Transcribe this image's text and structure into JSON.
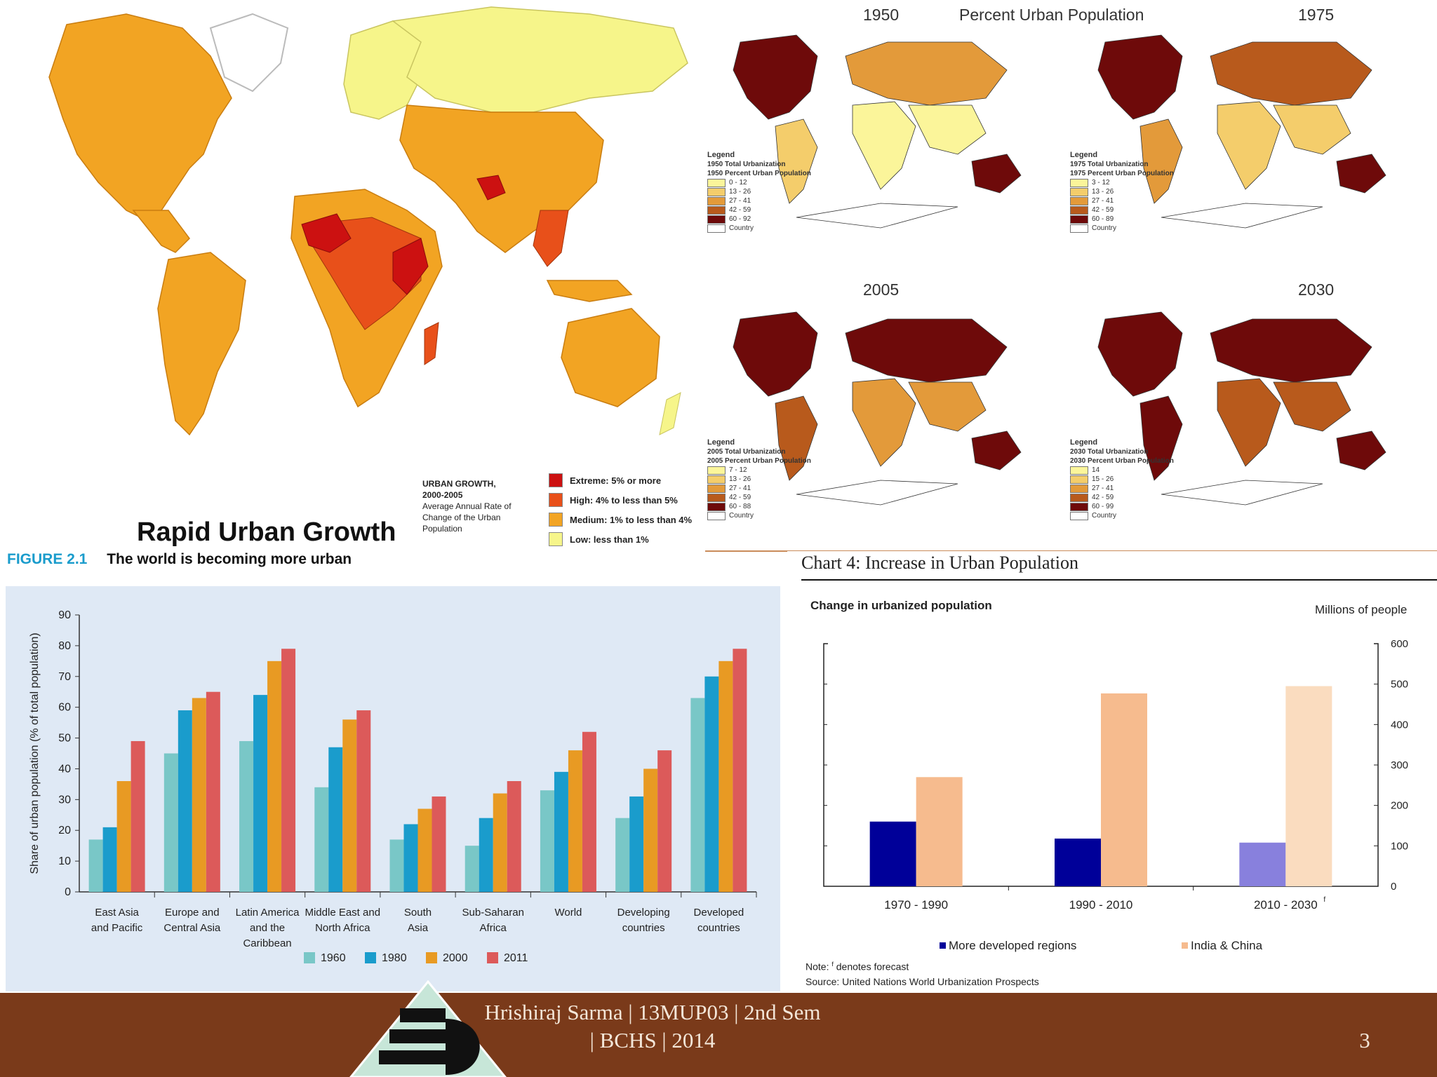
{
  "top_left_map": {
    "title": "Rapid Urban Growth",
    "legend_heading": [
      "URBAN GROWTH,",
      "2000-2005"
    ],
    "legend_subheading": [
      "Average Annual Rate of",
      "Change of the Urban",
      "Population"
    ],
    "legend_items": [
      {
        "label": "Extreme: 5% or more",
        "color": "#cc1111"
      },
      {
        "label": "High: 4% to less than 5%",
        "color": "#e8501a"
      },
      {
        "label": "Medium: 1% to less than 4%",
        "color": "#f2a423"
      },
      {
        "label": "Low: less than 1%",
        "color": "#f6f58a"
      }
    ]
  },
  "top_right_maps": {
    "title": "Percent Urban Population",
    "maps": [
      {
        "year": "1950",
        "legend_title": "Legend",
        "legend_lines": [
          "1950 Total Urbanization",
          "1950 Percent Urban Population"
        ],
        "ranges": [
          "0 - 12",
          "13 - 26",
          "27 - 41",
          "42 - 59",
          "60 - 92"
        ],
        "country_label": "Country"
      },
      {
        "year": "1975",
        "legend_title": "Legend",
        "legend_lines": [
          "1975 Total Urbanization",
          "1975 Percent Urban Population"
        ],
        "ranges": [
          "3 - 12",
          "13 - 26",
          "27 - 41",
          "42 - 59",
          "60 - 89"
        ],
        "country_label": "Country"
      },
      {
        "year": "2005",
        "legend_title": "Legend",
        "legend_lines": [
          "2005 Total Urbanization",
          "2005 Percent Urban Population"
        ],
        "ranges": [
          "7 - 12",
          "13 - 26",
          "27 - 41",
          "42 - 59",
          "60 - 88"
        ],
        "country_label": "Country"
      },
      {
        "year": "2030",
        "legend_title": "Legend",
        "legend_lines": [
          "2030 Total Urbanization",
          "2030 Percent Urban Population"
        ],
        "ranges": [
          "14",
          "15 - 26",
          "27 - 41",
          "42 - 59",
          "60 - 99"
        ],
        "country_label": "Country"
      }
    ],
    "swatch_colors": [
      "#fbf59a",
      "#f4cd6b",
      "#e39a3a",
      "#b85a1c",
      "#6e0a0a"
    ]
  },
  "figure_21": {
    "figure_label": "FIGURE 2.1",
    "figure_title": "The world is becoming more urban"
  },
  "chart4": {
    "header": "Chart 4: Increase in Urban Population",
    "subtitle": "Change in urbanized population",
    "units": "Millions of people",
    "note_prefix": "Note: ",
    "note_sup": "f",
    "note_rest": " denotes forecast",
    "source": "Source: United Nations World Urbanization Prospects"
  },
  "footer": {
    "line1": "Hrishiraj Sarma  | 13MUP03  | 2nd Sem",
    "line2": "| BCHS  | 2014",
    "page_number": "3"
  },
  "chart_data": [
    {
      "type": "bar",
      "title": "The world is becoming more urban",
      "xlabel": "",
      "ylabel": "Share of urban population (% of total population)",
      "ylim": [
        0,
        90
      ],
      "yticks": [
        0,
        10,
        20,
        30,
        40,
        50,
        60,
        70,
        80,
        90
      ],
      "categories": [
        [
          "East Asia",
          "and Pacific"
        ],
        [
          "Europe and",
          "Central Asia"
        ],
        [
          "Latin America",
          "and the",
          "Caribbean"
        ],
        [
          "Middle East and",
          "North Africa"
        ],
        [
          "South",
          "Asia"
        ],
        [
          "Sub-Saharan",
          "Africa"
        ],
        [
          "World"
        ],
        [
          "Developing",
          "countries"
        ],
        [
          "Developed",
          "countries"
        ]
      ],
      "series": [
        {
          "name": "1960",
          "color": "#79c7c7",
          "values": [
            17,
            45,
            49,
            34,
            17,
            15,
            33,
            24,
            63
          ]
        },
        {
          "name": "1980",
          "color": "#1a9ccc",
          "values": [
            21,
            59,
            64,
            47,
            22,
            24,
            39,
            31,
            70
          ]
        },
        {
          "name": "2000",
          "color": "#e89a23",
          "values": [
            36,
            63,
            75,
            56,
            27,
            32,
            46,
            40,
            75
          ]
        },
        {
          "name": "2011",
          "color": "#dc5a5a",
          "values": [
            49,
            65,
            79,
            59,
            31,
            36,
            52,
            46,
            79
          ]
        }
      ],
      "grid": false,
      "legend": "bottom-center"
    },
    {
      "type": "bar",
      "title": "Change in urbanized population",
      "xlabel": "",
      "ylabel": "Millions of people",
      "ylim": [
        0,
        600
      ],
      "yticks": [
        0,
        100,
        200,
        300,
        400,
        500,
        600
      ],
      "categories": [
        "1970 - 1990",
        "1990 - 2010",
        "2010 - 2030"
      ],
      "category_sup": [
        "",
        "",
        "f"
      ],
      "series": [
        {
          "name": "More developed regions",
          "colors": [
            "#000099",
            "#000099",
            "#8880dd"
          ],
          "values": [
            160,
            118,
            108
          ]
        },
        {
          "name": "India & China",
          "colors": [
            "#f6bb8e",
            "#f6bb8e",
            "#fadcbf"
          ],
          "values": [
            270,
            477,
            495
          ]
        }
      ],
      "grid": false,
      "legend": "bottom-center"
    }
  ]
}
